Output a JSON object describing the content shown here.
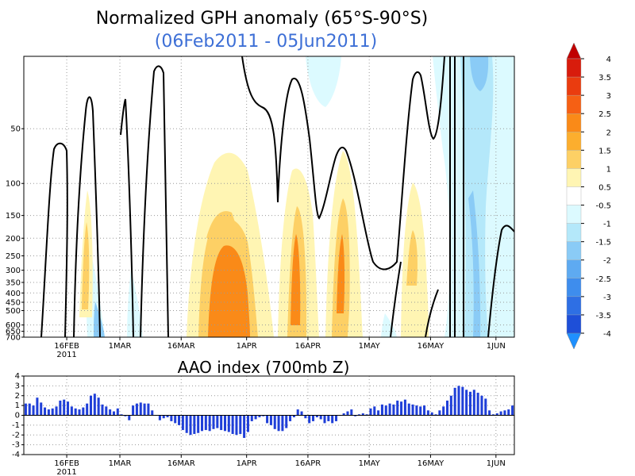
{
  "chart_data": [
    {
      "type": "heatmap",
      "title": "Normalized GPH anomaly (65°S-90°S)",
      "subtitle": "(06Feb2011 - 05Jun2011)",
      "x_tick_labels": [
        "16FEB",
        "1MAR",
        "16MAR",
        "1APR",
        "16APR",
        "1MAY",
        "16MAY",
        "1JUN"
      ],
      "x_tick_sublabel": "2011",
      "x_range": [
        "06Feb2011",
        "05Jun2011"
      ],
      "y_tick_labels": [
        "50",
        "100",
        "150",
        "200",
        "250",
        "300",
        "350",
        "400",
        "450",
        "500",
        "600",
        "650",
        "700"
      ],
      "y_scale": "log-pressure",
      "colorbar_labels": [
        "4",
        "3.5",
        "3",
        "2.5",
        "2",
        "1.5",
        "1",
        "0.5",
        "-0.5",
        "-1",
        "-1.5",
        "-2",
        "-2.5",
        "-3",
        "-3.5",
        "-4"
      ],
      "colorbar_colors": [
        "#c00000",
        "#d81c0c",
        "#ea3c0f",
        "#f66014",
        "#fa8a18",
        "#fcae2e",
        "#fdd065",
        "#fff5b3",
        "#ffffff",
        "#dcfaff",
        "#b4e8fa",
        "#8acbf6",
        "#5eaaf1",
        "#3e8ded",
        "#2e6fe4",
        "#1e4fd8",
        "#1e90ff"
      ],
      "grid": true
    },
    {
      "type": "bar",
      "title": "AAO index (700mb Z)",
      "x_tick_labels": [
        "16FEB",
        "1MAR",
        "16MAR",
        "1APR",
        "16APR",
        "1MAY",
        "16MAY",
        "1JUN"
      ],
      "x_tick_sublabel": "2011",
      "y_tick_labels": [
        "4",
        "3",
        "2",
        "1",
        "0",
        "-1",
        "-2",
        "-3",
        "-4"
      ],
      "ylim": [
        -4,
        4
      ],
      "bar_color": "#1f3fd8",
      "values": [
        1.2,
        1.2,
        1.0,
        1.8,
        1.3,
        0.8,
        0.6,
        0.7,
        0.9,
        1.5,
        1.6,
        1.4,
        0.9,
        0.7,
        0.6,
        0.8,
        1.2,
        2.0,
        2.2,
        1.8,
        1.1,
        0.9,
        0.6,
        0.4,
        0.7,
        0.1,
        -0.1,
        -0.5,
        1.0,
        1.2,
        1.3,
        1.2,
        1.2,
        0.5,
        0.0,
        -0.5,
        -0.3,
        -0.2,
        -0.6,
        -0.8,
        -1.0,
        -1.5,
        -1.8,
        -2.0,
        -1.9,
        -1.8,
        -1.6,
        -1.5,
        -1.6,
        -1.4,
        -1.3,
        -1.5,
        -1.6,
        -1.7,
        -1.9,
        -2.0,
        -1.9,
        -2.3,
        -1.7,
        -0.6,
        -0.4,
        -0.2,
        -0.1,
        -0.8,
        -1.0,
        -1.4,
        -1.6,
        -1.6,
        -1.3,
        -0.6,
        -0.2,
        0.6,
        0.4,
        -0.3,
        -0.8,
        -0.6,
        -0.2,
        -0.4,
        -0.8,
        -0.6,
        -0.8,
        -0.6,
        0.0,
        0.2,
        0.4,
        0.6,
        -0.1,
        0.1,
        0.2,
        0.1,
        0.7,
        0.9,
        0.5,
        1.1,
        1.0,
        1.2,
        1.1,
        1.5,
        1.4,
        1.6,
        1.2,
        1.1,
        1.0,
        0.9,
        1.0,
        0.5,
        0.3,
        0.1,
        0.5,
        0.9,
        1.5,
        2.0,
        2.8,
        3.0,
        2.9,
        2.6,
        2.4,
        2.6,
        2.3,
        2.0,
        1.7,
        0.5,
        0.1,
        0.2,
        0.4,
        0.5,
        0.6,
        1.0
      ]
    }
  ]
}
